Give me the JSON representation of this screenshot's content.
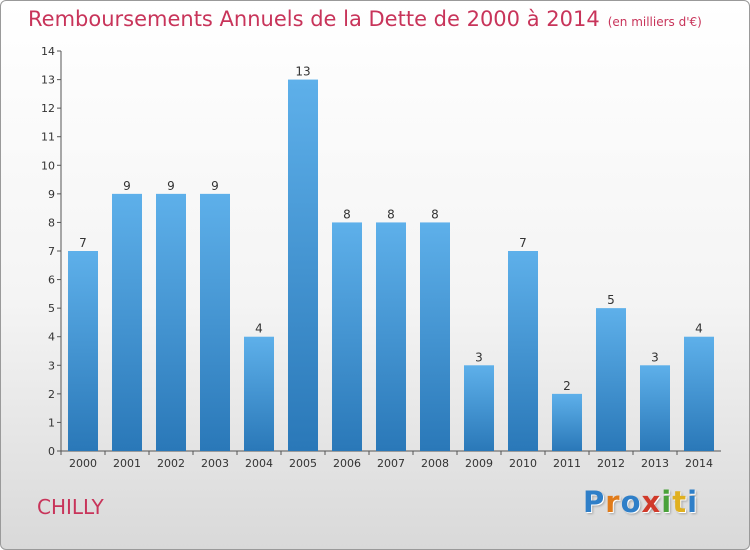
{
  "header": {
    "title": "Remboursements Annuels de la Dette de 2000 à 2014",
    "unit": "(en milliers d'€)"
  },
  "footer": {
    "city": "CHILLY",
    "logo_letters": [
      "P",
      "r",
      "o",
      "x",
      "i",
      "t",
      "i"
    ]
  },
  "colors": {
    "title": "#c8345a",
    "bar_top": "#5eb0ea",
    "bar_bottom": "#2a78b8",
    "logo": [
      "#2f7fc8",
      "#e07b1a",
      "#2f7fc8",
      "#d03a2a",
      "#4aa23a",
      "#e0b020",
      "#2f7fc8"
    ]
  },
  "chart_data": {
    "type": "bar",
    "title": "Remboursements Annuels de la Dette de 2000 à 2014",
    "xlabel": "",
    "ylabel": "",
    "categories": [
      "2000",
      "2001",
      "2002",
      "2003",
      "2004",
      "2005",
      "2006",
      "2007",
      "2008",
      "2009",
      "2010",
      "2011",
      "2012",
      "2013",
      "2014"
    ],
    "values": [
      7,
      9,
      9,
      9,
      4,
      13,
      8,
      8,
      8,
      3,
      7,
      2,
      5,
      3,
      4
    ],
    "ylim": [
      0,
      14
    ],
    "yticks": [
      0,
      1,
      2,
      3,
      4,
      5,
      6,
      7,
      8,
      9,
      10,
      11,
      12,
      13,
      14
    ],
    "grid": false,
    "legend": "none"
  }
}
